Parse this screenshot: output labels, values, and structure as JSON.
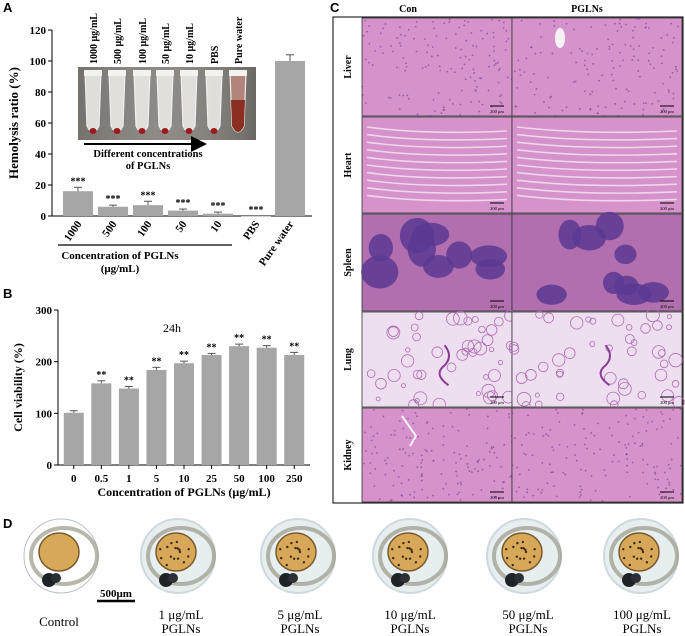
{
  "panels": {
    "A": "A",
    "B": "B",
    "C": "C",
    "D": "D"
  },
  "panel_a": {
    "inset_labels": [
      "1000 μg/mL",
      "500 μg/mL",
      "100 μg/mL",
      "50 μg/mL",
      "10 μg/mL",
      "PBS",
      "Pure water"
    ],
    "inset_caption_line1": "Different concentrations",
    "inset_caption_line2": "of PGLNs",
    "xgroup_label_line1": "Concentration of PGLNs",
    "xgroup_label_line2": "(μg/mL)"
  },
  "panel_b": {
    "annotation": "24h"
  },
  "panel_c": {
    "col_headers": [
      "Con",
      "PGLNs"
    ],
    "row_labels": [
      "Liver",
      "Heart",
      "Spleen",
      "Lung",
      "Kidney"
    ],
    "scale_label": "200 μm",
    "colors": {
      "he_pink": "#d88fc9",
      "he_purple": "#7a3d99",
      "nuclei": "#3b2a8a",
      "white_space": "#f4eef6"
    }
  },
  "panel_d": {
    "scale_bar": "500μm",
    "labels": [
      {
        "line1": "Control",
        "line2": ""
      },
      {
        "line1": "1 μg/mL",
        "line2": "PGLNs"
      },
      {
        "line1": "5 μg/mL",
        "line2": "PGLNs"
      },
      {
        "line1": "10 μg/mL",
        "line2": "PGLNs"
      },
      {
        "line1": "50 μg/mL",
        "line2": "PGLNs"
      },
      {
        "line1": "100 μg/mL",
        "line2": "PGLNs"
      }
    ]
  },
  "chart_data": [
    {
      "type": "bar",
      "ylabel": "Hemolysis ratio (%)",
      "xlabel": "Concentration of PGLNs (μg/mL)",
      "categories": [
        "1000",
        "500",
        "100",
        "50",
        "10",
        "PBS",
        "Pure water"
      ],
      "values": [
        16,
        6,
        7,
        3.5,
        1.5,
        0,
        100
      ],
      "errors": [
        2.5,
        1,
        2.5,
        1,
        1,
        0,
        4
      ],
      "significance": [
        "***",
        "***",
        "***",
        "***",
        "***",
        "***",
        ""
      ],
      "ylim": [
        0,
        120
      ],
      "yticks": [
        0,
        20,
        40,
        60,
        80,
        100,
        120
      ],
      "bar_color": "#a6a6a6"
    },
    {
      "type": "bar",
      "ylabel": "Cell viability (%)",
      "xlabel": "Concentration of PGLNs (μg/mL)",
      "categories": [
        "0",
        "0.5",
        "1",
        "5",
        "10",
        "25",
        "50",
        "100",
        "250"
      ],
      "values": [
        101,
        158,
        148,
        184,
        197,
        213,
        230,
        227,
        213
      ],
      "errors": [
        4,
        5,
        4,
        5,
        4,
        3,
        4,
        4,
        5
      ],
      "significance": [
        "",
        "**",
        "**",
        "**",
        "**",
        "**",
        "**",
        "**",
        "**"
      ],
      "ylim": [
        0,
        300
      ],
      "yticks": [
        0,
        100,
        200,
        300
      ],
      "bar_color": "#a6a6a6"
    }
  ]
}
